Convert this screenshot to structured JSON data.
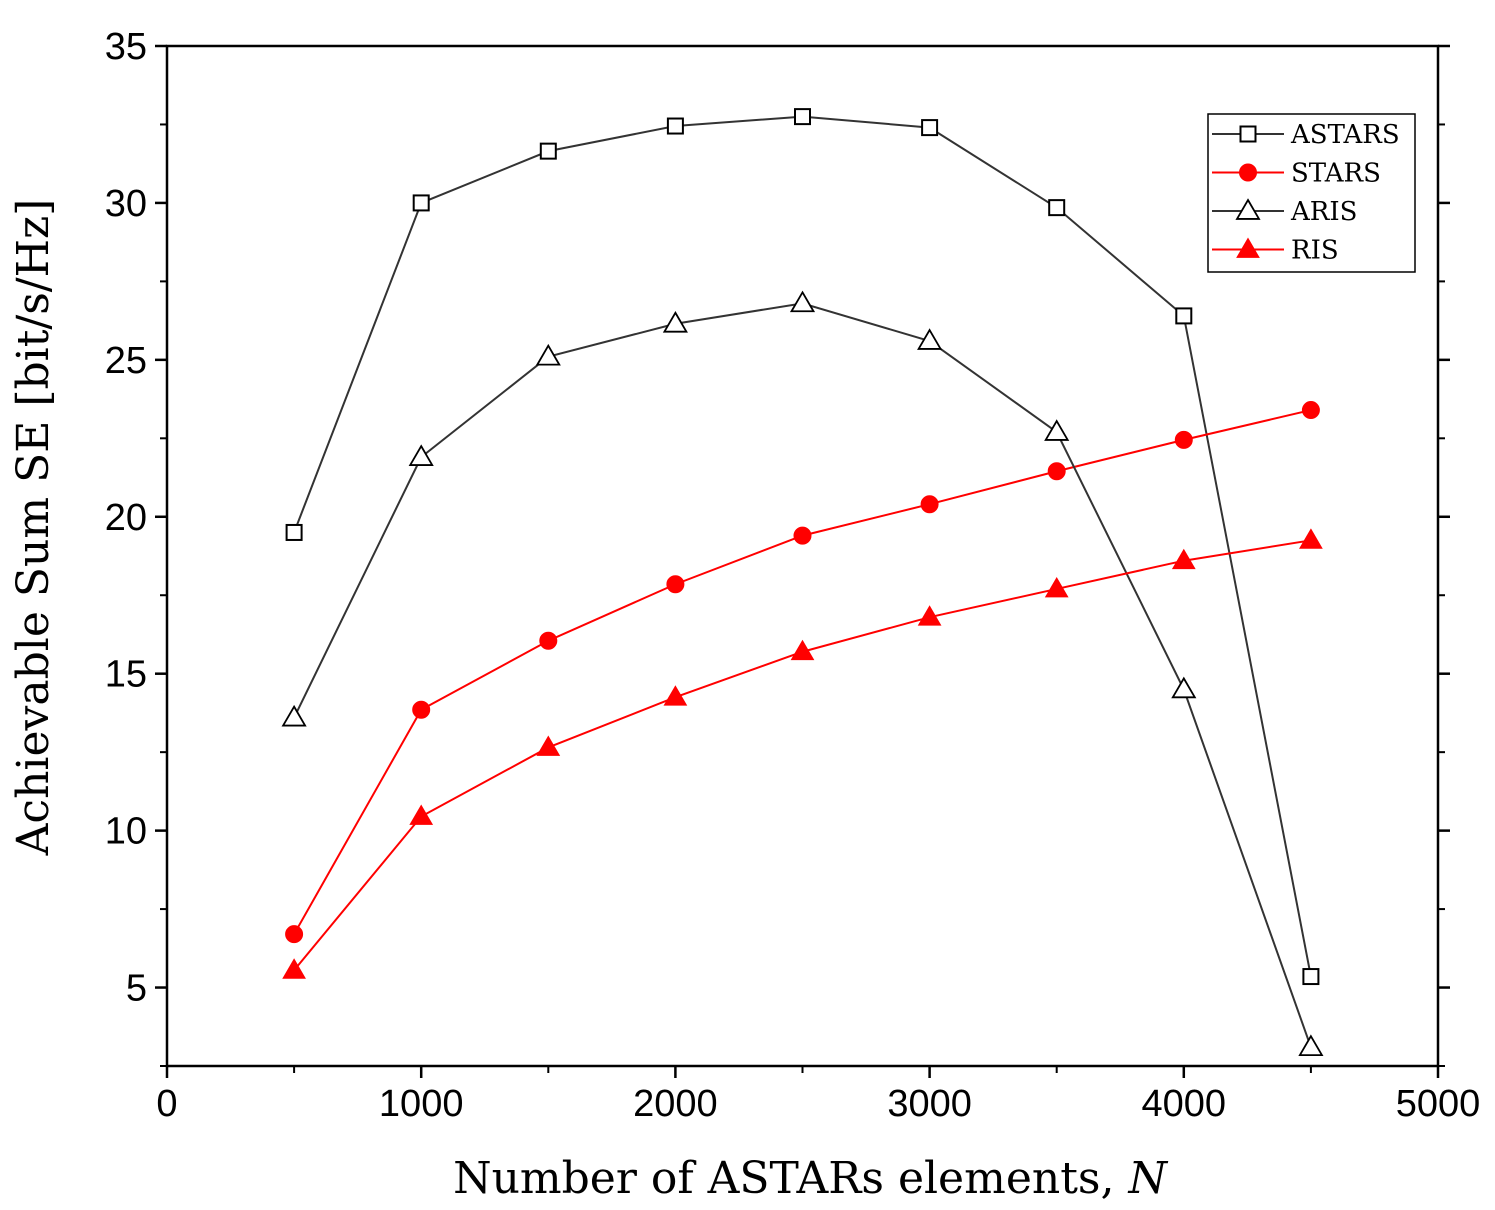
{
  "chart_data": {
    "type": "line",
    "title": "",
    "xlabel": "Number of ASTARs elements, ",
    "xlabel_var": "N",
    "ylabel": "Achievable Sum SE [bit/s/Hz]",
    "xlim": [
      0,
      5000
    ],
    "ylim": [
      2.5,
      35
    ],
    "xticks": [
      0,
      1000,
      2000,
      3000,
      4000,
      5000
    ],
    "yticks": [
      5,
      10,
      15,
      20,
      25,
      30,
      35
    ],
    "grid": false,
    "legend_position": "top-right",
    "x": [
      500,
      1000,
      1500,
      2000,
      2500,
      3000,
      3500,
      4000,
      4500
    ],
    "series": [
      {
        "name": "ASTARS",
        "color": "#333333",
        "marker": "open-square",
        "values": [
          19.5,
          30.0,
          31.65,
          32.45,
          32.75,
          32.4,
          29.85,
          26.4,
          5.35
        ]
      },
      {
        "name": "STARS",
        "color": "#ff0000",
        "marker": "filled-circle",
        "values": [
          6.7,
          13.85,
          16.05,
          17.85,
          19.4,
          20.4,
          21.45,
          22.45,
          23.4
        ]
      },
      {
        "name": "ARIS",
        "color": "#333333",
        "marker": "open-triangle",
        "values": [
          13.6,
          21.9,
          25.1,
          26.15,
          26.8,
          25.6,
          22.7,
          14.5,
          3.1
        ]
      },
      {
        "name": "RIS",
        "color": "#ff0000",
        "marker": "filled-triangle",
        "values": [
          5.55,
          10.45,
          12.65,
          14.25,
          15.7,
          16.8,
          17.7,
          18.6,
          19.25
        ]
      }
    ]
  }
}
